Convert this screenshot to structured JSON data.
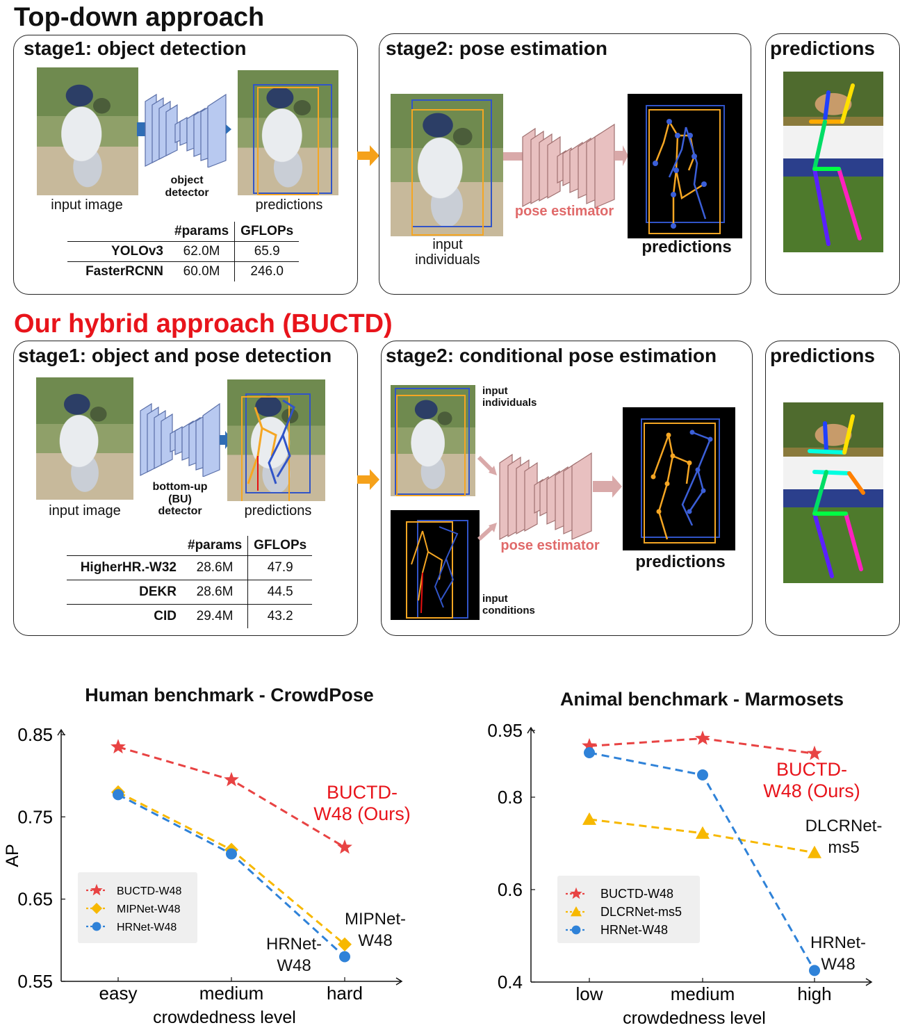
{
  "topdown": {
    "heading": "Top-down approach",
    "stage1_title": "stage1: object detection",
    "input_label": "input image",
    "detector_label": "object\ndetector",
    "predictions_label": "predictions",
    "table": {
      "headers": [
        "#params",
        "GFLOPs"
      ],
      "rows": [
        {
          "name": "YOLOv3",
          "params": "62.0M",
          "gflops": "65.9"
        },
        {
          "name": "FasterRCNN",
          "params": "60.0M",
          "gflops": "246.0"
        }
      ]
    },
    "stage2_title": "stage2: pose estimation",
    "input_individuals_label": "input\nindividuals",
    "estimator_label": "pose estimator",
    "stage2_predictions_label": "predictions",
    "final_title": "predictions"
  },
  "hybrid": {
    "heading": "Our hybrid approach (BUCTD)",
    "stage1_title": "stage1: object and pose detection",
    "input_label": "input image",
    "detector_label": "bottom-up\n(BU)\ndetector",
    "predictions_label": "predictions",
    "table": {
      "headers": [
        "#params",
        "GFLOPs"
      ],
      "rows": [
        {
          "name": "HigherHR.-W32",
          "params": "28.6M",
          "gflops": "47.9"
        },
        {
          "name": "DEKR",
          "params": "28.6M",
          "gflops": "44.5"
        },
        {
          "name": "CID",
          "params": "29.4M",
          "gflops": "43.2"
        }
      ]
    },
    "stage2_title": "stage2: conditional pose estimation",
    "input_individuals_label": "input\nindividuals",
    "input_conditions_label": "input\nconditions",
    "estimator_label": "pose estimator",
    "stage2_predictions_label": "predictions",
    "final_title": "predictions"
  },
  "colors": {
    "accent_red": "#e8141b",
    "estimator_red": "#e06a6a",
    "net_blue": "#b8c9f0",
    "net_pink": "#e8c0c0",
    "arrow_orange": "#f5a11a",
    "box_orange": "#f5a623",
    "box_blue": "#3154c8",
    "series_red": "#e84343",
    "series_orange": "#f7b800",
    "series_blue": "#2f82d8"
  },
  "chart_data": [
    {
      "type": "line",
      "title": "Human benchmark - CrowdPose",
      "xlabel": "crowdedness level",
      "ylabel": "AP",
      "categories": [
        "easy",
        "medium",
        "hard"
      ],
      "yticks": [
        "0.55",
        "0.65",
        "0.75",
        "0.85"
      ],
      "ylim": [
        0.55,
        0.86
      ],
      "legend_position": "lower-left",
      "series": [
        {
          "name": "BUCTD-W48",
          "marker": "star",
          "color": "#e84343",
          "values": [
            0.835,
            0.795,
            0.713
          ]
        },
        {
          "name": "MIPNet-W48",
          "marker": "diamond",
          "color": "#f7b800",
          "values": [
            0.78,
            0.71,
            0.595
          ]
        },
        {
          "name": "HRNet-W48",
          "marker": "circle",
          "color": "#2f82d8",
          "values": [
            0.777,
            0.705,
            0.58
          ]
        }
      ],
      "annotations": [
        {
          "text": "BUCTD-\nW48 (Ours)",
          "color": "#e8141b"
        },
        {
          "text": "MIPNet-\nW48",
          "color": "#111111"
        },
        {
          "text": "HRNet-\nW48",
          "color": "#111111"
        }
      ]
    },
    {
      "type": "line",
      "title": "Animal benchmark - Marmosets",
      "xlabel": "crowdedness level",
      "ylabel": "",
      "categories": [
        "low",
        "medium",
        "high"
      ],
      "yticks": [
        "0.4",
        "0.6",
        "0.8",
        "0.95"
      ],
      "ylim": [
        0.4,
        0.96
      ],
      "legend_position": "lower-left",
      "series": [
        {
          "name": "BUCTD-W48",
          "marker": "star",
          "color": "#e84343",
          "values": [
            0.915,
            0.932,
            0.898
          ]
        },
        {
          "name": "DLCRNet-ms5",
          "marker": "triangle",
          "color": "#f7b800",
          "values": [
            0.752,
            0.722,
            0.68
          ]
        },
        {
          "name": "HRNet-W48",
          "marker": "circle",
          "color": "#2f82d8",
          "values": [
            0.9,
            0.85,
            0.425
          ]
        }
      ],
      "annotations": [
        {
          "text": "BUCTD-\nW48 (Ours)",
          "color": "#e8141b"
        },
        {
          "text": "DLCRNet-\nms5",
          "color": "#111111"
        },
        {
          "text": "HRNet-\nW48",
          "color": "#111111"
        }
      ]
    }
  ]
}
